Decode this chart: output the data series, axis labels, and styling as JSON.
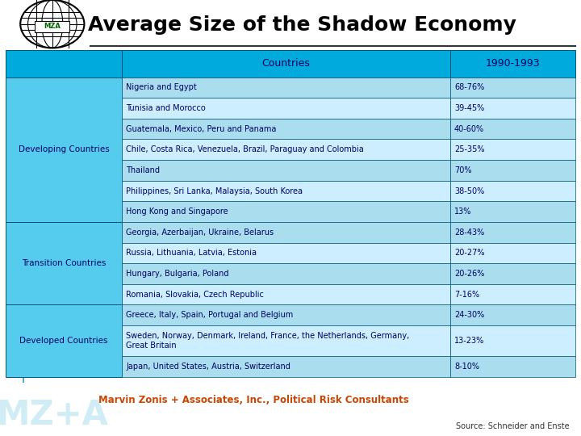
{
  "title": "Average Size of the Shadow Economy",
  "header": [
    "Countries",
    "1990-1993"
  ],
  "sections": [
    {
      "label": "Developing Countries",
      "rows": [
        [
          "Nigeria and Egypt",
          "68-76%"
        ],
        [
          "Tunisia and Morocco",
          "39-45%"
        ],
        [
          "Guatemala, Mexico, Peru and Panama",
          "40-60%"
        ],
        [
          "Chile, Costa Rica, Venezuela, Brazil, Paraguay and Colombia",
          "25-35%"
        ],
        [
          "Thailand",
          "70%"
        ],
        [
          "Philippines, Sri Lanka, Malaysia, South Korea",
          "38-50%"
        ],
        [
          "Hong Kong and Singapore",
          "13%"
        ]
      ]
    },
    {
      "label": "Transition Countries",
      "rows": [
        [
          "Georgia, Azerbaijan, Ukraine, Belarus",
          "28-43%"
        ],
        [
          "Russia, Lithuania, Latvia, Estonia",
          "20-27%"
        ],
        [
          "Hungary, Bulgaria, Poland",
          "20-26%"
        ],
        [
          "Romania, Slovakia, Czech Republic",
          "7-16%"
        ]
      ]
    },
    {
      "label": "Developed Countries",
      "rows": [
        [
          "Greece, Italy, Spain, Portugal and Belgium",
          "24-30%"
        ],
        [
          "Sweden, Norway, Denmark, Ireland, France, the Netherlands, Germany,\nGreat Britain",
          "13-23%"
        ],
        [
          "Japan, United States, Austria, Switzerland",
          "8-10%"
        ]
      ]
    }
  ],
  "header_bg": "#00AADD",
  "section_label_bg": "#55CCEE",
  "row_bg_light": "#AADDEE",
  "row_bg_white": "#CCEEFF",
  "text_color": "#000066",
  "header_text_color": "#000066",
  "footer_text": "Marvin Zonis + Associates, Inc., Political Risk Consultants",
  "footer_color": "#CC4400",
  "source_text": "Source: Schneider and Enste",
  "background_color": "#FFFFFF",
  "title_color": "#000000",
  "line_color": "#005577",
  "globe_color": "#000000",
  "mza_color": "#006600",
  "watermark_color": "#AADDEE",
  "divider_color": "#333333"
}
